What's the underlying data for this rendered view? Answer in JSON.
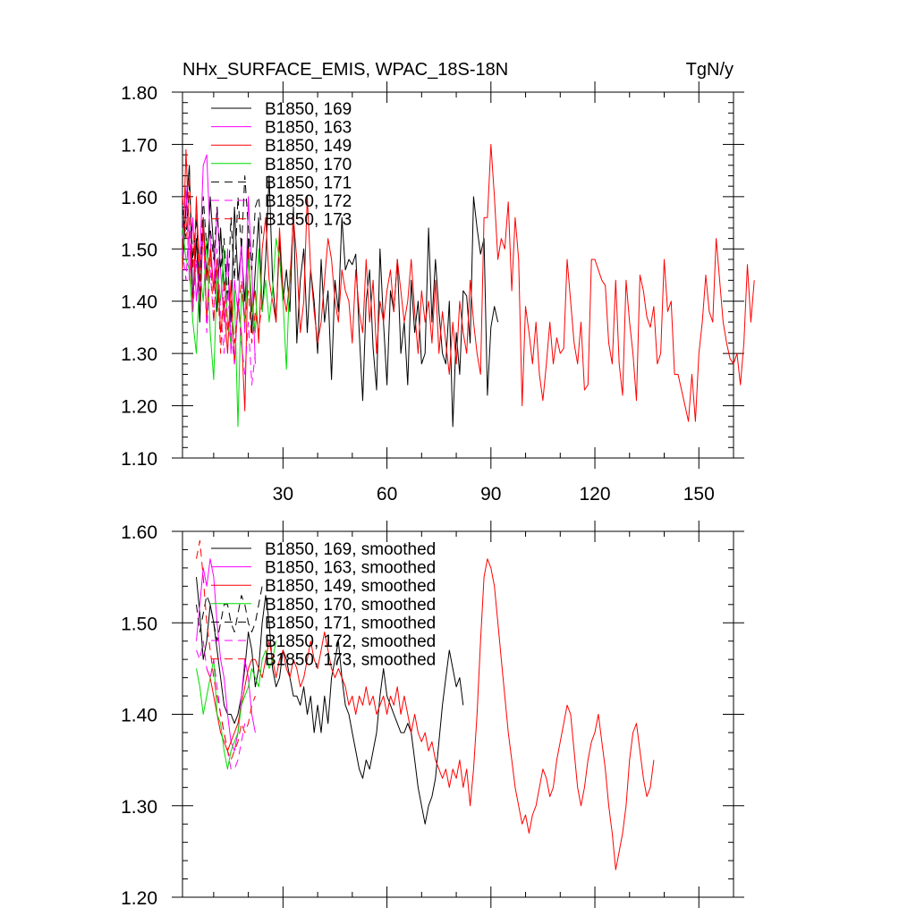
{
  "chart_data": [
    {
      "type": "line",
      "title": "NHx_SURFACE_EMIS, WPAC_18S-18N",
      "units": "TgN/y",
      "xlim": [
        1,
        160
      ],
      "ylim": [
        1.1,
        1.8
      ],
      "xticks": [
        30,
        60,
        90,
        120,
        150
      ],
      "xtick_labels": [
        "30",
        "60",
        "90",
        "120",
        "150"
      ],
      "yticks": [
        1.1,
        1.2,
        1.3,
        1.4,
        1.5,
        1.6,
        1.7,
        1.8
      ],
      "ytick_labels": [
        "1.10",
        "1.20",
        "1.30",
        "1.40",
        "1.50",
        "1.60",
        "1.70",
        "1.80"
      ],
      "legend_position": "top-left",
      "series": [
        {
          "name": "B1850, 169",
          "color": "#000000",
          "dash": "solid",
          "x_start": 1,
          "values": [
            1.46,
            1.58,
            1.66,
            1.4,
            1.52,
            1.36,
            1.56,
            1.44,
            1.6,
            1.5,
            1.38,
            1.54,
            1.42,
            1.48,
            1.36,
            1.58,
            1.44,
            1.5,
            1.4,
            1.52,
            1.34,
            1.46,
            1.56,
            1.38,
            1.48,
            1.64,
            1.44,
            1.36,
            1.52,
            1.4,
            1.46,
            1.38,
            1.58,
            1.32,
            1.44,
            1.5,
            1.34,
            1.46,
            1.4,
            1.3,
            1.48,
            1.36,
            1.42,
            1.25,
            1.44,
            1.38,
            1.56,
            1.46,
            1.48,
            1.47,
            1.49,
            1.34,
            1.21,
            1.4,
            1.46,
            1.31,
            1.23,
            1.5,
            1.36,
            1.24,
            1.42,
            1.38,
            1.48,
            1.3,
            1.36,
            1.24,
            1.44,
            1.34,
            1.4,
            1.28,
            1.3,
            1.54,
            1.36,
            1.48,
            1.38,
            1.3,
            1.28,
            1.4,
            1.16,
            1.34,
            1.26,
            1.42,
            1.41,
            1.32,
            1.6,
            1.54,
            1.49,
            1.52,
            1.22,
            1.35,
            1.39,
            1.36
          ]
        },
        {
          "name": "B1850, 163",
          "color": "#ff00ff",
          "dash": "solid",
          "x_start": 1,
          "values": [
            1.52,
            1.62,
            1.44,
            1.56,
            1.4,
            1.48,
            1.66,
            1.68,
            1.52,
            1.42,
            1.58,
            1.46,
            1.36,
            1.5,
            1.3,
            1.44,
            1.38,
            1.52,
            1.34,
            1.6,
            1.46,
            1.28
          ]
        },
        {
          "name": "B1850, 149",
          "color": "#ff0000",
          "dash": "solid",
          "x_start": 1,
          "values": [
            1.46,
            1.69,
            1.52,
            1.38,
            1.6,
            1.44,
            1.56,
            1.36,
            1.5,
            1.42,
            1.48,
            1.34,
            1.4,
            1.3,
            1.44,
            1.28,
            1.4,
            1.34,
            1.19,
            1.5,
            1.38,
            1.42,
            1.32,
            1.5,
            1.56,
            1.44,
            1.4,
            1.36,
            1.54,
            1.42,
            1.38,
            1.44,
            1.56,
            1.48,
            1.34,
            1.4,
            1.6,
            1.46,
            1.38,
            1.32,
            1.36,
            1.44,
            1.52,
            1.48,
            1.4,
            1.36,
            1.46,
            1.42,
            1.4,
            1.32,
            1.46,
            1.38,
            1.34,
            1.48,
            1.36,
            1.44,
            1.3,
            1.4,
            1.36,
            1.42,
            1.46,
            1.38,
            1.48,
            1.42,
            1.36,
            1.4,
            1.48,
            1.38,
            1.3,
            1.42,
            1.36,
            1.4,
            1.32,
            1.44,
            1.3,
            1.38,
            1.32,
            1.26,
            1.36,
            1.28,
            1.4,
            1.34,
            1.3,
            1.44,
            1.36,
            1.3,
            1.26,
            1.56,
            1.56,
            1.7,
            1.6,
            1.48,
            1.52,
            1.5,
            1.59,
            1.42,
            1.56,
            1.48,
            1.2,
            1.39,
            1.34,
            1.28,
            1.36,
            1.26,
            1.21,
            1.28,
            1.36,
            1.28,
            1.33,
            1.3,
            1.31,
            1.48,
            1.4,
            1.32,
            1.28,
            1.36,
            1.23,
            1.24,
            1.48,
            1.48,
            1.46,
            1.44,
            1.43,
            1.32,
            1.28,
            1.44,
            1.28,
            1.22,
            1.44,
            1.36,
            1.3,
            1.21,
            1.45,
            1.42,
            1.37,
            1.35,
            1.39,
            1.28,
            1.3,
            1.48,
            1.38,
            1.4,
            1.26,
            1.26,
            1.23,
            1.2,
            1.17,
            1.26,
            1.17,
            1.3,
            1.36,
            1.45,
            1.38,
            1.36,
            1.52,
            1.44,
            1.36,
            1.32,
            1.29,
            1.28,
            1.3,
            1.24,
            1.32,
            1.47,
            1.36,
            1.44
          ]
        },
        {
          "name": "B1850, 170",
          "color": "#00dd00",
          "dash": "solid",
          "x_start": 1,
          "values": [
            1.54,
            1.48,
            1.46,
            1.36,
            1.3,
            1.46,
            1.4,
            1.52,
            1.34,
            1.25,
            1.46,
            1.4,
            1.5,
            1.36,
            1.32,
            1.42,
            1.16,
            1.42,
            1.36,
            1.48,
            1.4,
            1.34,
            1.5,
            1.38,
            1.44,
            1.36,
            1.42,
            1.52,
            1.48,
            1.4,
            1.27,
            1.46
          ]
        },
        {
          "name": "B1850, 171",
          "color": "#000000",
          "dash": "dash",
          "x_start": 1,
          "values": [
            1.58,
            1.52,
            1.62,
            1.48,
            1.56,
            1.42,
            1.6,
            1.5,
            1.54,
            1.48,
            1.58,
            1.46,
            1.52,
            1.4,
            1.56,
            1.44,
            1.6,
            1.5,
            1.64,
            1.54,
            1.46,
            1.58,
            1.6,
            1.52
          ]
        },
        {
          "name": "B1850, 172",
          "color": "#ff00ff",
          "dash": "dash",
          "x_start": 1,
          "values": [
            1.5,
            1.44,
            1.56,
            1.38,
            1.48,
            1.4,
            1.54,
            1.34,
            1.46,
            1.36,
            1.5,
            1.38,
            1.3,
            1.42,
            1.34,
            1.28,
            1.4,
            1.32,
            1.26,
            1.36,
            1.24,
            1.3
          ]
        },
        {
          "name": "B1850, 173",
          "color": "#ff0000",
          "dash": "dash",
          "x_start": 1,
          "values": [
            1.6,
            1.52,
            1.64,
            1.46,
            1.58,
            1.4,
            1.54,
            1.44,
            1.5,
            1.36,
            1.48,
            1.3,
            1.44,
            1.34,
            1.4,
            1.32,
            1.38,
            1.44,
            1.36,
            1.42,
            1.32,
            1.38,
            1.34,
            1.4
          ]
        }
      ]
    },
    {
      "type": "line",
      "title": "",
      "units": "",
      "xlim": [
        1,
        160
      ],
      "ylim": [
        1.2,
        1.6
      ],
      "xticks": [
        30,
        60,
        90,
        120,
        150
      ],
      "xtick_labels": [],
      "yticks": [
        1.2,
        1.3,
        1.4,
        1.5,
        1.6
      ],
      "ytick_labels": [
        "1.20",
        "1.30",
        "1.40",
        "1.50",
        "1.60"
      ],
      "legend_position": "top-left",
      "series": [
        {
          "name": "B1850, 169, smoothed",
          "color": "#000000",
          "dash": "solid",
          "x_start": 5,
          "values": [
            1.55,
            1.51,
            1.46,
            1.48,
            1.52,
            1.5,
            1.47,
            1.44,
            1.41,
            1.4,
            1.4,
            1.39,
            1.4,
            1.42,
            1.45,
            1.49,
            1.47,
            1.43,
            1.45,
            1.5,
            1.53,
            1.5,
            1.45,
            1.43,
            1.44,
            1.47,
            1.46,
            1.44,
            1.42,
            1.42,
            1.41,
            1.43,
            1.4,
            1.42,
            1.38,
            1.41,
            1.38,
            1.42,
            1.39,
            1.44,
            1.46,
            1.48,
            1.44,
            1.41,
            1.4,
            1.38,
            1.36,
            1.34,
            1.33,
            1.35,
            1.34,
            1.36,
            1.38,
            1.42,
            1.45,
            1.42,
            1.41,
            1.4,
            1.39,
            1.38,
            1.38,
            1.39,
            1.38,
            1.35,
            1.32,
            1.3,
            1.28,
            1.3,
            1.31,
            1.33,
            1.37,
            1.41,
            1.44,
            1.47,
            1.45,
            1.43,
            1.44,
            1.41
          ]
        },
        {
          "name": "B1850, 163, smoothed",
          "color": "#ff00ff",
          "dash": "solid",
          "x_start": 5,
          "values": [
            1.48,
            1.52,
            1.56,
            1.54,
            1.57,
            1.55,
            1.5,
            1.46,
            1.44,
            1.4,
            1.37,
            1.36,
            1.38,
            1.42,
            1.46,
            1.44,
            1.4,
            1.38
          ]
        },
        {
          "name": "B1850, 149, smoothed",
          "color": "#ff0000",
          "dash": "solid",
          "x_start": 8,
          "values": [
            1.45,
            1.44,
            1.42,
            1.4,
            1.38,
            1.37,
            1.36,
            1.37,
            1.38,
            1.39,
            1.41,
            1.43,
            1.45,
            1.46,
            1.46,
            1.45,
            1.44,
            1.46,
            1.48,
            1.46,
            1.44,
            1.46,
            1.47,
            1.45,
            1.44,
            1.46,
            1.45,
            1.43,
            1.44,
            1.46,
            1.48,
            1.46,
            1.45,
            1.47,
            1.49,
            1.47,
            1.45,
            1.44,
            1.45,
            1.44,
            1.43,
            1.41,
            1.42,
            1.4,
            1.42,
            1.41,
            1.43,
            1.41,
            1.42,
            1.4,
            1.41,
            1.42,
            1.4,
            1.42,
            1.41,
            1.43,
            1.4,
            1.42,
            1.4,
            1.38,
            1.4,
            1.38,
            1.37,
            1.38,
            1.36,
            1.37,
            1.35,
            1.34,
            1.33,
            1.34,
            1.32,
            1.34,
            1.33,
            1.35,
            1.32,
            1.34,
            1.3,
            1.34,
            1.4,
            1.48,
            1.55,
            1.57,
            1.56,
            1.54,
            1.5,
            1.46,
            1.42,
            1.38,
            1.35,
            1.32,
            1.3,
            1.28,
            1.29,
            1.27,
            1.29,
            1.3,
            1.32,
            1.34,
            1.33,
            1.31,
            1.32,
            1.35,
            1.37,
            1.39,
            1.41,
            1.4,
            1.36,
            1.32,
            1.3,
            1.32,
            1.35,
            1.37,
            1.38,
            1.4,
            1.37,
            1.34,
            1.3,
            1.27,
            1.23,
            1.25,
            1.27,
            1.3,
            1.35,
            1.38,
            1.39,
            1.36,
            1.33,
            1.31,
            1.32,
            1.35
          ]
        },
        {
          "name": "B1850, 170, smoothed",
          "color": "#00dd00",
          "dash": "solid",
          "x_start": 5,
          "values": [
            1.45,
            1.43,
            1.4,
            1.42,
            1.44,
            1.46,
            1.4,
            1.39,
            1.36,
            1.34,
            1.36,
            1.37,
            1.38,
            1.41,
            1.42,
            1.43,
            1.45,
            1.44,
            1.43,
            1.46,
            1.47,
            1.45,
            1.46,
            1.48
          ]
        },
        {
          "name": "B1850, 171, smoothed",
          "color": "#000000",
          "dash": "dash",
          "x_start": 5,
          "values": [
            1.52,
            1.49,
            1.51,
            1.53,
            1.52,
            1.5,
            1.48,
            1.5,
            1.52,
            1.52,
            1.5,
            1.49,
            1.51,
            1.53,
            1.52,
            1.5,
            1.49,
            1.5,
            1.52,
            1.54
          ]
        },
        {
          "name": "B1850, 172, smoothed",
          "color": "#ff00ff",
          "dash": "dash",
          "x_start": 5,
          "values": [
            1.47,
            1.46,
            1.48,
            1.45,
            1.44,
            1.46,
            1.43,
            1.4,
            1.38,
            1.36,
            1.34,
            1.34,
            1.35,
            1.37,
            1.39
          ]
        },
        {
          "name": "B1850, 173, smoothed",
          "color": "#ff0000",
          "dash": "dash",
          "x_start": 5,
          "values": [
            1.57,
            1.59,
            1.55,
            1.5,
            1.47,
            1.44,
            1.42,
            1.4,
            1.38,
            1.36,
            1.35,
            1.36,
            1.37,
            1.39,
            1.38,
            1.39,
            1.41,
            1.42
          ]
        }
      ]
    }
  ]
}
